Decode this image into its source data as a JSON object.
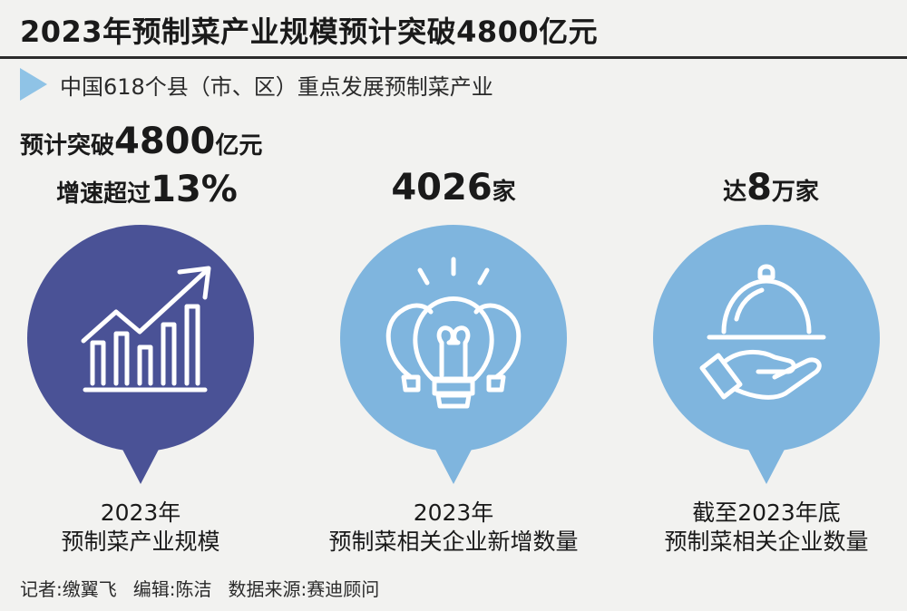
{
  "header": {
    "title": "2023年预制菜产业规模预计突破4800亿元",
    "subtitle": "中国618个县（市、区）重点发展预制菜产业"
  },
  "colors": {
    "dark_bubble": "#4a5296",
    "light_bubble": "#7fb5de",
    "subtitle_arrow": "#8fc3e6"
  },
  "panels": [
    {
      "stat_line1_prefix": "预计突破",
      "stat_line1_value": "4800",
      "stat_line1_suffix": "亿元",
      "stat_line2_prefix": "增速超过",
      "stat_line2_value": "13%",
      "icon": "growth-chart-icon",
      "caption_line1": "2023年",
      "caption_line2": "预制菜产业规模"
    },
    {
      "stat_value": "4026",
      "stat_suffix": "家",
      "icon": "lightbulb-icon",
      "caption_line1": "2023年",
      "caption_line2": "预制菜相关企业新增数量"
    },
    {
      "stat_prefix": "达",
      "stat_value": "8",
      "stat_suffix": "万家",
      "icon": "serving-cloche-hand-icon",
      "caption_line1": "截至2023年底",
      "caption_line2": "预制菜相关企业数量"
    }
  ],
  "footer": {
    "reporter": "记者:缴翼飞",
    "editor": "编辑:陈洁",
    "source": "数据来源:赛迪顾问"
  }
}
